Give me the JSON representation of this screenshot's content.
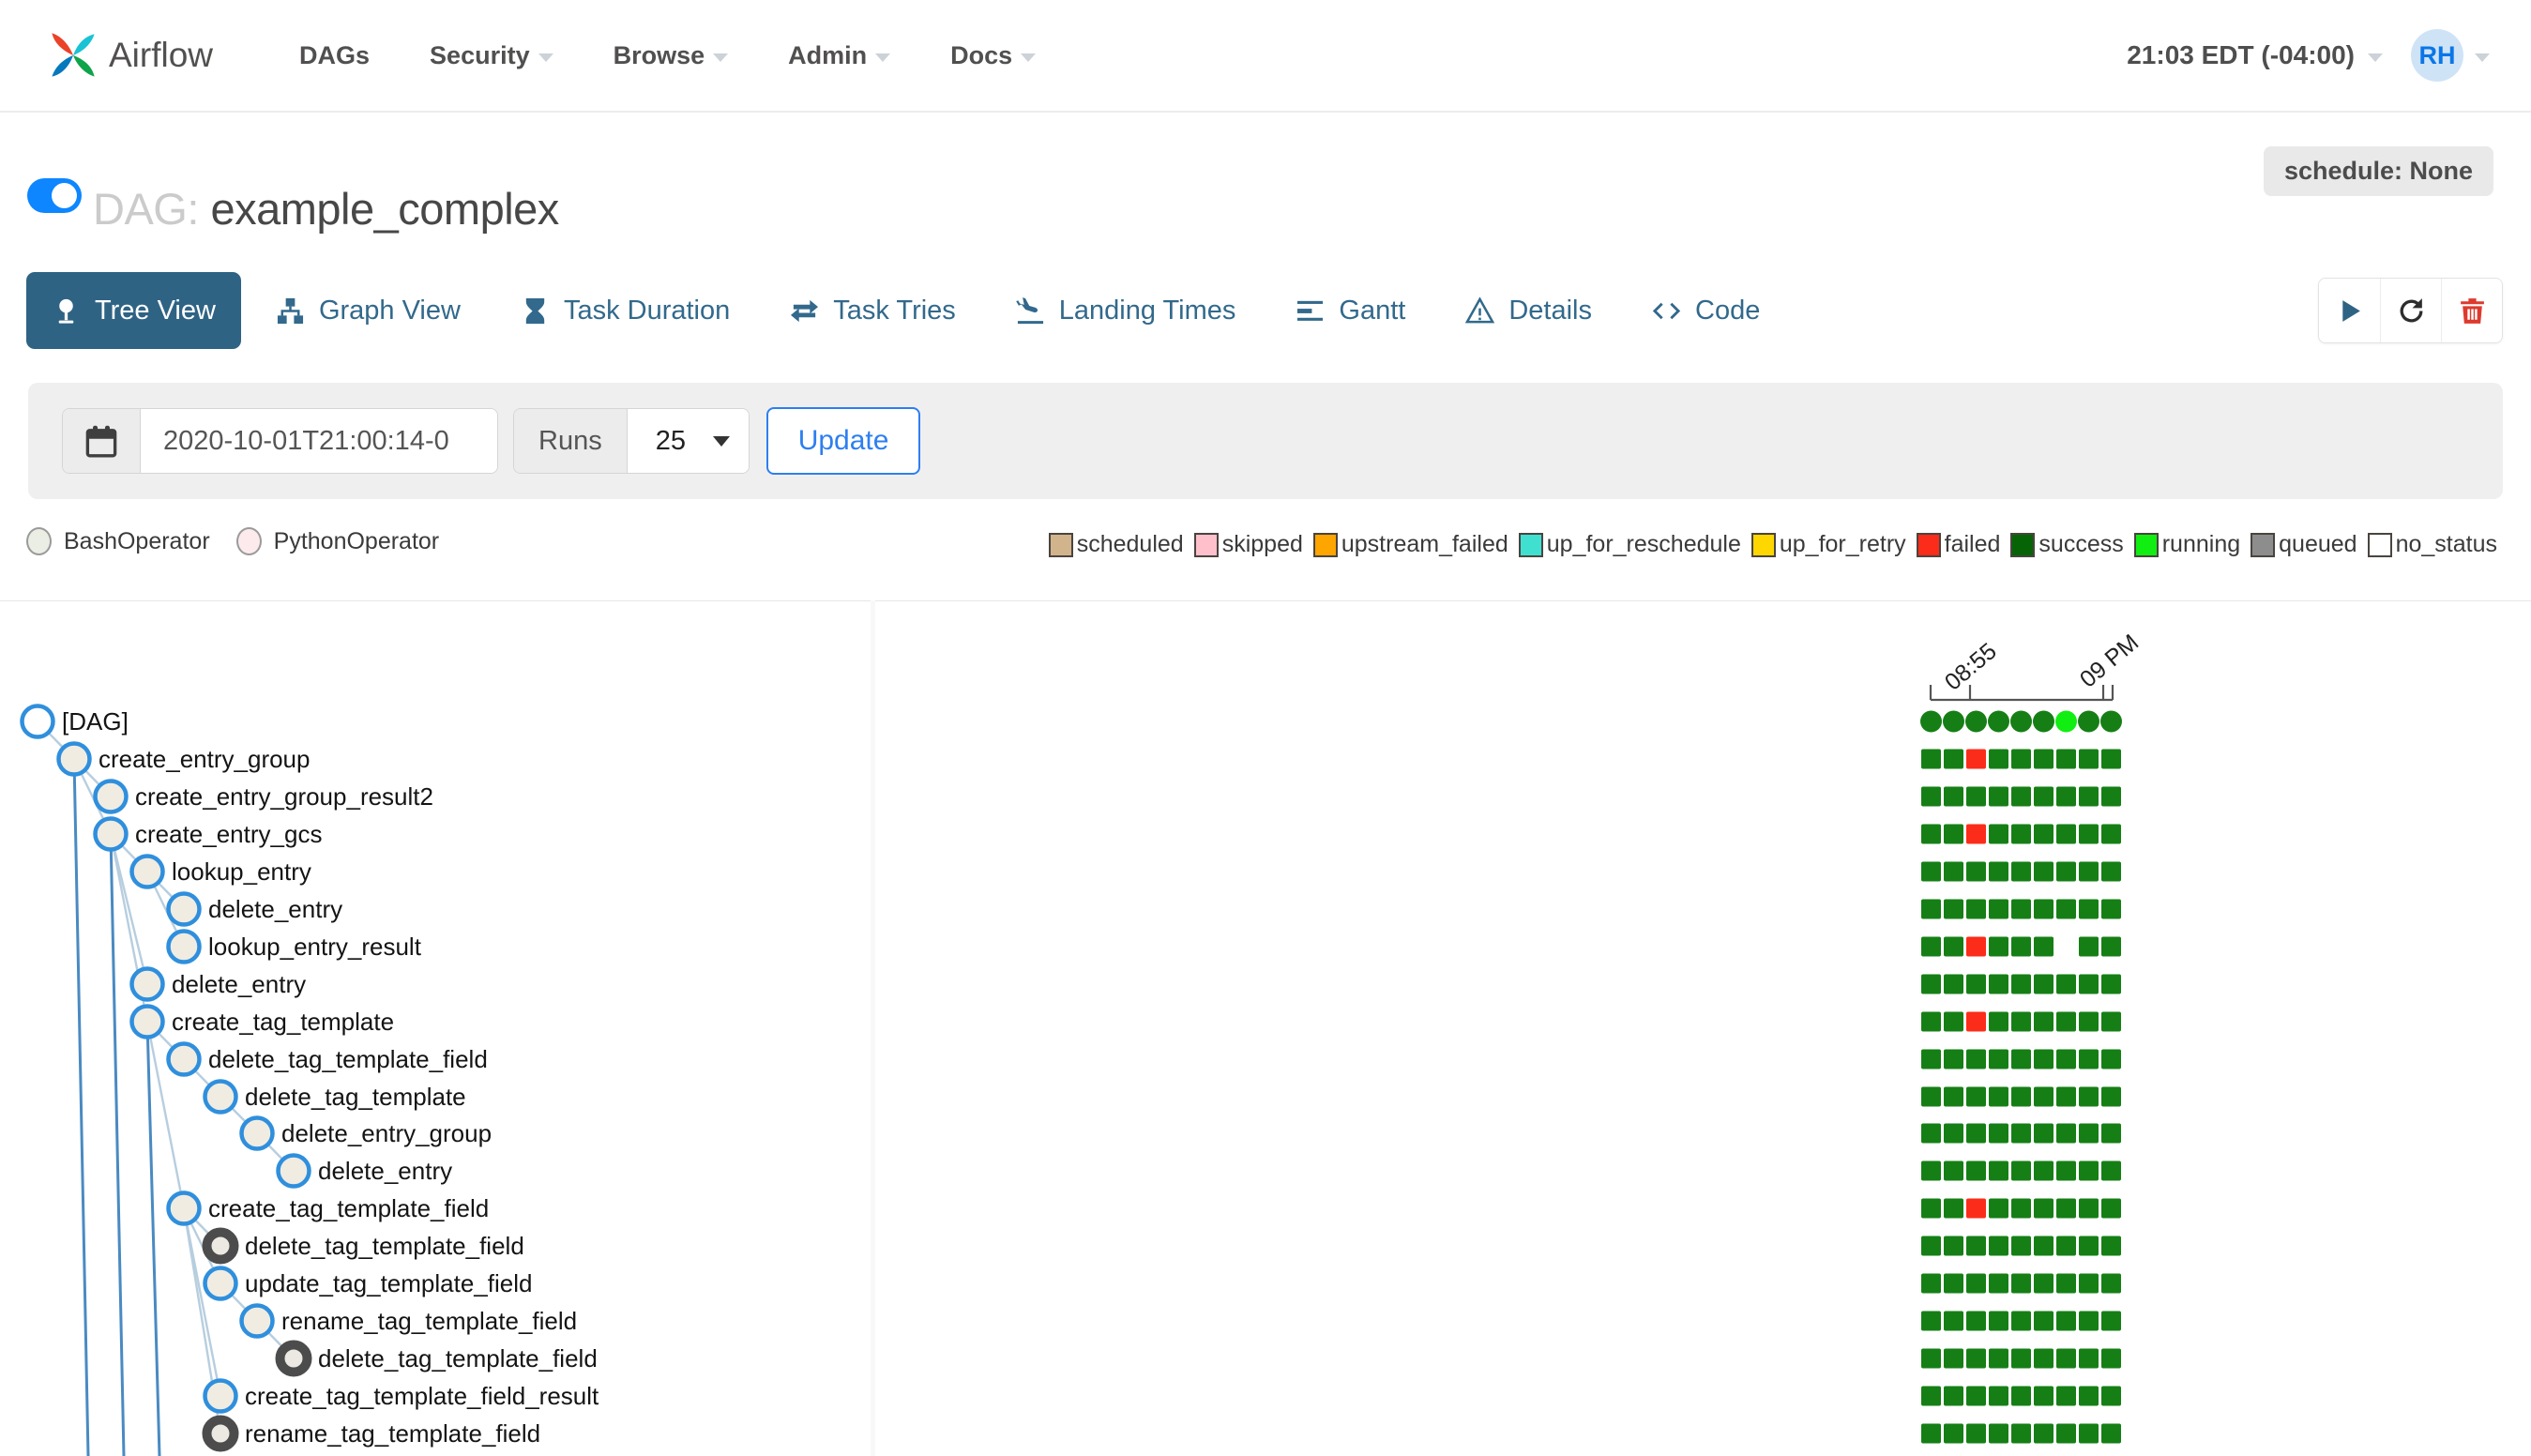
{
  "nav": {
    "brand": "Airflow",
    "menu": [
      {
        "label": "DAGs",
        "caret": false
      },
      {
        "label": "Security",
        "caret": true
      },
      {
        "label": "Browse",
        "caret": true
      },
      {
        "label": "Admin",
        "caret": true
      },
      {
        "label": "Docs",
        "caret": true
      }
    ],
    "clock": "21:03 EDT (-04:00)",
    "avatar_initials": "RH"
  },
  "header": {
    "dag_prefix": "DAG:",
    "dag_name": "example_complex",
    "schedule_badge": "schedule: None"
  },
  "tabs": [
    {
      "label": "Tree View",
      "icon": "tree-icon",
      "active": true
    },
    {
      "label": "Graph View",
      "icon": "graph-icon",
      "active": false
    },
    {
      "label": "Task Duration",
      "icon": "hourglass-icon",
      "active": false
    },
    {
      "label": "Task Tries",
      "icon": "retries-icon",
      "active": false
    },
    {
      "label": "Landing Times",
      "icon": "landing-icon",
      "active": false
    },
    {
      "label": "Gantt",
      "icon": "gantt-icon",
      "active": false
    },
    {
      "label": "Details",
      "icon": "details-icon",
      "active": false
    },
    {
      "label": "Code",
      "icon": "code-icon",
      "active": false
    }
  ],
  "actions": [
    {
      "name": "trigger-dag-button",
      "icon": "play-icon",
      "cls": "act-play"
    },
    {
      "name": "refresh-button",
      "icon": "refresh-icon",
      "cls": "act-refresh"
    },
    {
      "name": "delete-dag-button",
      "icon": "trash-icon",
      "cls": "act-trash"
    }
  ],
  "filter": {
    "date_value": "2020-10-01T21:00:14-0",
    "runs_label": "Runs",
    "runs_value": "25",
    "update_label": "Update"
  },
  "operator_legend": [
    {
      "label": "BashOperator",
      "fill": "#eaeee4"
    },
    {
      "label": "PythonOperator",
      "fill": "#fdeaec"
    }
  ],
  "status_legend": [
    {
      "label": "scheduled",
      "color": "#d2b48c"
    },
    {
      "label": "skipped",
      "color": "#ffc0cb"
    },
    {
      "label": "upstream_failed",
      "color": "#ffa500"
    },
    {
      "label": "up_for_reschedule",
      "color": "#40e0d0"
    },
    {
      "label": "up_for_retry",
      "color": "#ffd700"
    },
    {
      "label": "failed",
      "color": "#fb2c19"
    },
    {
      "label": "success",
      "color": "#066406"
    },
    {
      "label": "running",
      "color": "#11ee11"
    },
    {
      "label": "queued",
      "color": "#8d8d8d"
    },
    {
      "label": "no_status",
      "color": "#ffffff"
    }
  ],
  "timeline": {
    "tick_labels": [
      "08:55",
      "09 PM"
    ]
  },
  "tree": {
    "status_colors": {
      "s": "#157f15",
      "f": "#fb2c19",
      "r": "#11ee11"
    },
    "rows": [
      {
        "label": "[DAG]",
        "level": 0,
        "node": "dag",
        "parent": -1,
        "cells": "ssssssrss"
      },
      {
        "label": "create_entry_group",
        "level": 1,
        "node": "bash",
        "parent": 0,
        "cells": "ssfssssss"
      },
      {
        "label": "create_entry_group_result2",
        "level": 2,
        "node": "bash",
        "parent": 1,
        "cells": "sssssssss"
      },
      {
        "label": "create_entry_gcs",
        "level": 2,
        "node": "bash",
        "parent": 1,
        "cells": "ssfssssss"
      },
      {
        "label": "lookup_entry",
        "level": 3,
        "node": "bash",
        "parent": 3,
        "cells": "sssssssss"
      },
      {
        "label": "delete_entry",
        "level": 4,
        "node": "bash",
        "parent": 4,
        "cells": "sssssssss"
      },
      {
        "label": "lookup_entry_result",
        "level": 4,
        "node": "bash",
        "parent": 4,
        "cells": "ssfsss.ss"
      },
      {
        "label": "delete_entry",
        "level": 3,
        "node": "bash",
        "parent": 3,
        "cells": "sssssssss"
      },
      {
        "label": "create_tag_template",
        "level": 3,
        "node": "bash",
        "parent": 3,
        "cells": "ssfssssss"
      },
      {
        "label": "delete_tag_template_field",
        "level": 4,
        "node": "bash",
        "parent": 8,
        "cells": "sssssssss"
      },
      {
        "label": "delete_tag_template",
        "level": 5,
        "node": "bash",
        "parent": 9,
        "cells": "sssssssss"
      },
      {
        "label": "delete_entry_group",
        "level": 6,
        "node": "bash",
        "parent": 10,
        "cells": "sssssssss"
      },
      {
        "label": "delete_entry",
        "level": 7,
        "node": "bash",
        "parent": 11,
        "cells": "sssssssss"
      },
      {
        "label": "create_tag_template_field",
        "level": 4,
        "node": "bash",
        "parent": 8,
        "cells": "ssfssssss"
      },
      {
        "label": "delete_tag_template_field",
        "level": 5,
        "node": "collapsed",
        "parent": 13,
        "cells": "sssssssss"
      },
      {
        "label": "update_tag_template_field",
        "level": 5,
        "node": "bash",
        "parent": 13,
        "cells": "sssssssss"
      },
      {
        "label": "rename_tag_template_field",
        "level": 6,
        "node": "bash",
        "parent": 15,
        "cells": "sssssssss"
      },
      {
        "label": "delete_tag_template_field",
        "level": 7,
        "node": "collapsed",
        "parent": 16,
        "cells": "sssssssss"
      },
      {
        "label": "create_tag_template_field_result",
        "level": 5,
        "node": "bash",
        "parent": 13,
        "cells": "sssssssss"
      },
      {
        "label": "rename_tag_template_field",
        "level": 5,
        "node": "collapsed",
        "parent": 13,
        "cells": "sssssssss"
      }
    ]
  }
}
